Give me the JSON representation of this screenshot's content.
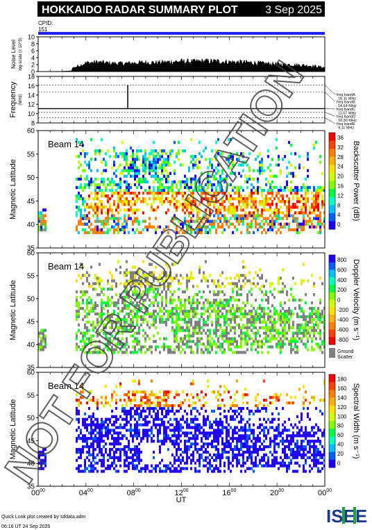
{
  "header": {
    "title": "HOKKAIDO RADAR SUMMARY PLOT",
    "date": "3 Sep 2025",
    "cpid_label": "CPID:",
    "cpid_value": "151"
  },
  "footer": {
    "credit": "Quick Look plot created by sddata.adm",
    "created": "06:16 UT 24 Sep 2025",
    "logo_text": "ISEE"
  },
  "watermark": "NOT FOR PUBLICATION",
  "colors": {
    "cpid_bar": "#2020ff",
    "ground_scatter": "#808080",
    "title_bar": "#000000"
  },
  "chart_data": [
    {
      "type": "area",
      "name": "noise",
      "ylabel": "Noise Level",
      "ylabel_sub": "log-scale (x 10^3)",
      "ylim": [
        0,
        10
      ],
      "yticks": [
        "10",
        "8",
        "6",
        "4",
        "2",
        "0"
      ],
      "x": [
        0,
        1,
        2,
        3,
        4,
        5,
        6,
        7,
        8,
        9,
        10,
        11,
        12,
        13,
        14,
        15,
        16,
        17,
        18,
        19,
        20,
        21,
        22,
        23,
        24
      ],
      "values": [
        0,
        0.3,
        0.5,
        1.5,
        3.2,
        3.5,
        3.1,
        3.0,
        3.2,
        3.4,
        3.3,
        3.6,
        3.8,
        3.7,
        3.9,
        3.8,
        3.6,
        3.5,
        3.3,
        3.0,
        2.8,
        2.6,
        2.4,
        2.1,
        1.5
      ]
    },
    {
      "type": "line",
      "name": "frequency",
      "ylabel": "Frequency",
      "ylabel_sub": "(MHz)",
      "ylim": [
        8,
        18
      ],
      "yticks": [
        "18",
        "16",
        "14",
        "12",
        "10",
        "8"
      ],
      "dashed_levels": [
        16.11,
        14.64,
        11.07,
        10.3,
        9.11
      ],
      "spike": {
        "x": 7.5,
        "from": 11.07,
        "to": 16.11
      },
      "bands": [
        {
          "label": "freq bandA",
          "value": "16.11 MHz"
        },
        {
          "label": "freq bandB",
          "value": "14.64 MHz"
        },
        {
          "label": "freq bandC",
          "value": "11.07 MHz"
        },
        {
          "label": "freq bandD",
          "value": "10.30 MHz"
        },
        {
          "label": "freq bandE",
          "value": "9.11 MHz"
        }
      ]
    },
    {
      "type": "heatmap",
      "name": "power",
      "beam_label": "Beam 14",
      "ylabel": "Magnetic Latitude",
      "ylim": [
        35,
        60
      ],
      "yticks": [
        "60",
        "55",
        "50",
        "45",
        "40",
        "35"
      ],
      "colorbar_label": "Backscatter Power (dB)",
      "colorbar_ticks": [
        "36",
        "32",
        "28",
        "24",
        "20",
        "16",
        "12",
        "8",
        "4",
        "0"
      ],
      "colorbar_colors": [
        "#ff0000",
        "#ff4000",
        "#ff8000",
        "#ffb000",
        "#ffe000",
        "#d0ff00",
        "#80ff00",
        "#00ff40",
        "#00ffc0",
        "#00c0ff",
        "#0060ff",
        "#2000ff"
      ]
    },
    {
      "type": "heatmap",
      "name": "velocity",
      "beam_label": "Beam 14",
      "ylabel": "Magnetic Latitude",
      "ylim": [
        35,
        60
      ],
      "yticks": [
        "60",
        "55",
        "50",
        "45",
        "40",
        "35"
      ],
      "colorbar_label": "Doppler Velocity (m s⁻¹)",
      "colorbar_ticks": [
        "800",
        "600",
        "400",
        "200",
        "0",
        "-200",
        "-400",
        "-600",
        "-800"
      ],
      "colorbar_colors": [
        "#2000ff",
        "#0060ff",
        "#00c0ff",
        "#00ffc0",
        "#00ff40",
        "#80ff00",
        "#d0ff00",
        "#ffe000",
        "#ffb000",
        "#ff8000",
        "#ff4000",
        "#ff0000"
      ],
      "ground_label_1": "Ground",
      "ground_label_2": "Scatter"
    },
    {
      "type": "heatmap",
      "name": "width",
      "beam_label": "Beam 14",
      "ylabel": "Magnetic Latitude",
      "ylim": [
        35,
        60
      ],
      "yticks": [
        "60",
        "55",
        "50",
        "45",
        "40",
        "35"
      ],
      "colorbar_label": "Spectral Width (m s⁻¹)",
      "colorbar_ticks": [
        "180",
        "160",
        "140",
        "120",
        "100",
        "80",
        "60",
        "40",
        "20",
        "0"
      ],
      "colorbar_colors": [
        "#ff0000",
        "#ff4000",
        "#ff8000",
        "#ffb000",
        "#ffe000",
        "#d0ff00",
        "#80ff00",
        "#00ff40",
        "#00ffc0",
        "#00c0ff",
        "#0060ff",
        "#2000ff"
      ]
    }
  ],
  "time_axis": {
    "label": "UT",
    "range": [
      0,
      24
    ],
    "ticks": [
      {
        "h": "00",
        "m": "00",
        "v": 0
      },
      {
        "h": "04",
        "m": "00",
        "v": 4
      },
      {
        "h": "08",
        "m": "00",
        "v": 8
      },
      {
        "h": "12",
        "m": "00",
        "v": 12
      },
      {
        "h": "16",
        "m": "00",
        "v": 16
      },
      {
        "h": "20",
        "m": "00",
        "v": 20
      },
      {
        "h": "00",
        "m": "00",
        "v": 24
      }
    ]
  }
}
